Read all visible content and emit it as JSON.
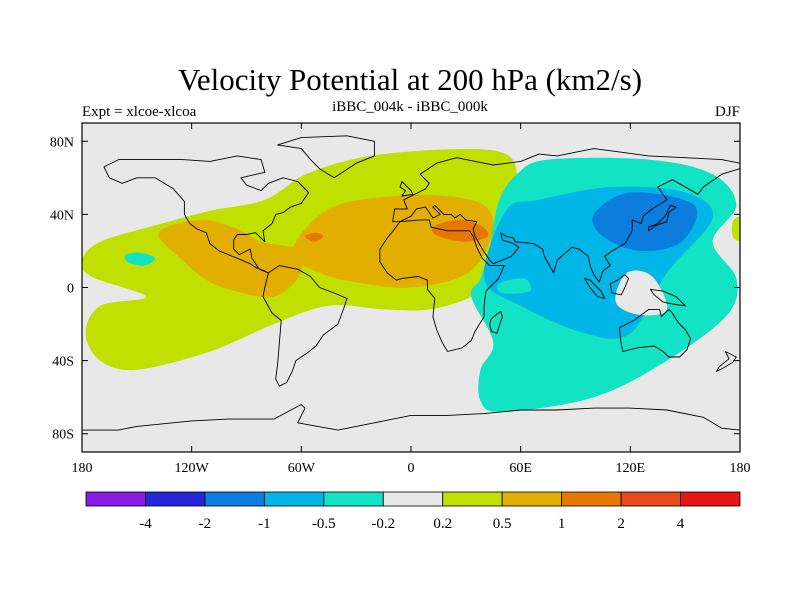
{
  "chart_data": {
    "type": "heatmap",
    "title": "Velocity Potential at 200 hPa (km2/s)",
    "left_label": "Expt = xlcoe-xlcoa",
    "center_label": "iBBC_004k - iBBC_000k",
    "right_label": "DJF",
    "x_ticks": [
      {
        "value": -180,
        "label": "180"
      },
      {
        "value": -120,
        "label": "120W"
      },
      {
        "value": -60,
        "label": "60W"
      },
      {
        "value": 0,
        "label": "0"
      },
      {
        "value": 60,
        "label": "60E"
      },
      {
        "value": 120,
        "label": "120E"
      },
      {
        "value": 180,
        "label": "180"
      }
    ],
    "y_ticks": [
      {
        "value": 80,
        "label": "80N"
      },
      {
        "value": 40,
        "label": "40N"
      },
      {
        "value": 0,
        "label": "0"
      },
      {
        "value": -40,
        "label": "40S"
      },
      {
        "value": -80,
        "label": "80S"
      }
    ],
    "xlim": [
      -180,
      180
    ],
    "ylim": [
      -90,
      90
    ],
    "levels": [
      "-4",
      "-2",
      "-1",
      "-0.5",
      "-0.2",
      "0.2",
      "0.5",
      "1",
      "2",
      "4"
    ],
    "palette": [
      "#8a1ae6",
      "#2626d9",
      "#0a7ddd",
      "#00b6e6",
      "#12e3c4",
      "#e8e8e8",
      "#bfe000",
      "#e2af00",
      "#e67800",
      "#e64a1e",
      "#e61414"
    ],
    "regions": [
      {
        "name": "positive-americas-atlantic",
        "bin": 6,
        "poly": [
          [
            -170,
            25
          ],
          [
            -140,
            34
          ],
          [
            -110,
            42
          ],
          [
            -80,
            48
          ],
          [
            -55,
            63
          ],
          [
            -15,
            73
          ],
          [
            45,
            75
          ],
          [
            58,
            62
          ],
          [
            48,
            47
          ],
          [
            43,
            22
          ],
          [
            38,
            5
          ],
          [
            33,
            -5
          ],
          [
            10,
            -12
          ],
          [
            -15,
            -12
          ],
          [
            -45,
            -10
          ],
          [
            -75,
            -20
          ],
          [
            -110,
            -35
          ],
          [
            -150,
            -45
          ],
          [
            -170,
            -40
          ],
          [
            -178,
            -25
          ],
          [
            -170,
            -10
          ],
          [
            -145,
            -5
          ],
          [
            -175,
            6
          ],
          [
            -180,
            15
          ]
        ]
      },
      {
        "name": "positive-mid-pacific",
        "bin": 6,
        "poly": [
          [
            -158,
            12
          ],
          [
            -145,
            8
          ],
          [
            -130,
            15
          ],
          [
            -135,
            22
          ],
          [
            -150,
            22
          ],
          [
            -162,
            18
          ]
        ]
      },
      {
        "name": "positive-mid-pacific-inner",
        "bin": 4,
        "poly": [
          [
            -155,
            14
          ],
          [
            -146,
            12
          ],
          [
            -140,
            16
          ],
          [
            -148,
            19
          ],
          [
            -156,
            18
          ]
        ]
      },
      {
        "name": "strong-americas",
        "bin": 7,
        "poly": [
          [
            -138,
            30
          ],
          [
            -115,
            37
          ],
          [
            -95,
            32
          ],
          [
            -82,
            25
          ],
          [
            -60,
            20
          ],
          [
            -62,
            5
          ],
          [
            -75,
            -5
          ],
          [
            -92,
            -3
          ],
          [
            -110,
            3
          ],
          [
            -125,
            15
          ]
        ]
      },
      {
        "name": "strong-atlantic-africa",
        "bin": 7,
        "poly": [
          [
            -65,
            20
          ],
          [
            -45,
            43
          ],
          [
            -10,
            50
          ],
          [
            20,
            50
          ],
          [
            40,
            45
          ],
          [
            45,
            33
          ],
          [
            38,
            15
          ],
          [
            25,
            5
          ],
          [
            0,
            0
          ],
          [
            -25,
            2
          ],
          [
            -50,
            8
          ]
        ]
      },
      {
        "name": "peak-arabia",
        "bin": 8,
        "poly": [
          [
            12,
            33
          ],
          [
            25,
            37
          ],
          [
            38,
            34
          ],
          [
            42,
            28
          ],
          [
            30,
            25
          ],
          [
            15,
            28
          ]
        ]
      },
      {
        "name": "peak-atlantic",
        "bin": 8,
        "poly": [
          [
            -58,
            28
          ],
          [
            -52,
            30
          ],
          [
            -48,
            28
          ],
          [
            -53,
            25
          ]
        ]
      },
      {
        "name": "negative-asia-pacific",
        "bin": 4,
        "poly": [
          [
            33,
            -5
          ],
          [
            38,
            5
          ],
          [
            43,
            22
          ],
          [
            48,
            47
          ],
          [
            58,
            62
          ],
          [
            75,
            70
          ],
          [
            130,
            70
          ],
          [
            165,
            62
          ],
          [
            178,
            45
          ],
          [
            165,
            25
          ],
          [
            178,
            5
          ],
          [
            173,
            -15
          ],
          [
            140,
            -40
          ],
          [
            100,
            -60
          ],
          [
            50,
            -68
          ],
          [
            38,
            -62
          ],
          [
            38,
            -45
          ],
          [
            45,
            -30
          ]
        ]
      },
      {
        "name": "negative-asia-core",
        "bin": 3,
        "poly": [
          [
            52,
            42
          ],
          [
            70,
            48
          ],
          [
            110,
            55
          ],
          [
            150,
            52
          ],
          [
            165,
            38
          ],
          [
            140,
            8
          ],
          [
            120,
            -25
          ],
          [
            95,
            -25
          ],
          [
            60,
            -10
          ],
          [
            40,
            5
          ]
        ]
      },
      {
        "name": "negative-east-asia",
        "bin": 2,
        "poly": [
          [
            100,
            40
          ],
          [
            120,
            52
          ],
          [
            155,
            45
          ],
          [
            148,
            25
          ],
          [
            125,
            20
          ],
          [
            105,
            28
          ]
        ]
      },
      {
        "name": "neutral-maritime-hole",
        "bin": 5,
        "poly": [
          [
            118,
            8
          ],
          [
            132,
            6
          ],
          [
            140,
            -12
          ],
          [
            125,
            -15
          ],
          [
            112,
            -8
          ]
        ]
      },
      {
        "name": "negative-blob-indian",
        "bin": 4,
        "poly": [
          [
            48,
            2
          ],
          [
            62,
            5
          ],
          [
            65,
            -2
          ],
          [
            50,
            -3
          ]
        ]
      },
      {
        "name": "positive-far-east",
        "bin": 6,
        "poly": [
          [
            176,
            28
          ],
          [
            180,
            26
          ],
          [
            180,
            38
          ],
          [
            176,
            36
          ]
        ]
      }
    ],
    "units": "km2/s"
  }
}
